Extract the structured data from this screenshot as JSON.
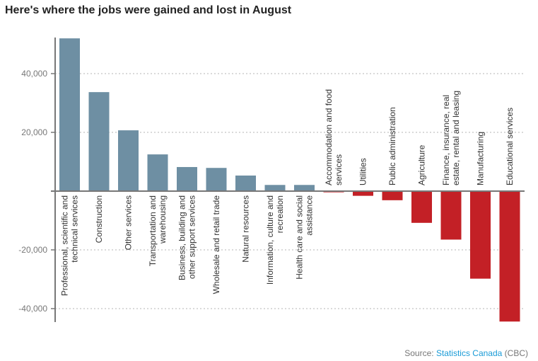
{
  "chart_data": {
    "type": "bar",
    "title": "Here's where the jobs were gained and lost in August",
    "xlabel": "",
    "ylabel": "",
    "ylim": [
      -45000,
      52000
    ],
    "yticks": [
      40000,
      20000,
      -20000,
      -40000
    ],
    "ytick_labels": [
      "40,000",
      "20,000",
      "-20,000",
      "-40,000"
    ],
    "grid": true,
    "categories": [
      [
        "Professional, scientific and",
        "technical services"
      ],
      [
        "Construction"
      ],
      [
        "Other services"
      ],
      [
        "Transportation and",
        "warehousing"
      ],
      [
        "Business, building and",
        "other support services"
      ],
      [
        "Wholesale and retail trade"
      ],
      [
        "Natural resources"
      ],
      [
        "Information, culture and",
        "recreation"
      ],
      [
        "Health care and social",
        "assistance"
      ],
      [
        "Accommodation and food",
        "services"
      ],
      [
        "Utilities"
      ],
      [
        "Public administration"
      ],
      [
        "Agriculture"
      ],
      [
        "Finance, insurance, real",
        "estate, rental and leasing"
      ],
      [
        "Manufacturing"
      ],
      [
        "Educational services"
      ]
    ],
    "values": [
      52000,
      33700,
      20700,
      12500,
      8200,
      7900,
      5300,
      2100,
      2100,
      -400,
      -1600,
      -3100,
      -10800,
      -16500,
      -29800,
      -44400
    ],
    "colors": {
      "positive": "#6e8fa3",
      "negative": "#c32026"
    }
  },
  "source": {
    "prefix": "Source: ",
    "link": "Statistics Canada",
    "suffix": " (CBC)"
  }
}
